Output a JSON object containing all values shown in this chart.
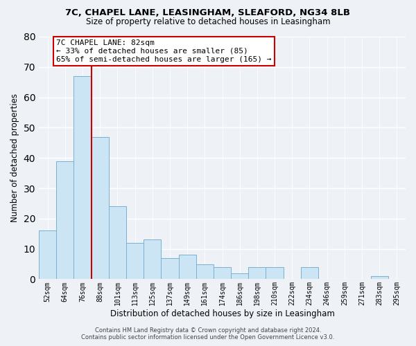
{
  "title1": "7C, CHAPEL LANE, LEASINGHAM, SLEAFORD, NG34 8LB",
  "title2": "Size of property relative to detached houses in Leasingham",
  "xlabel": "Distribution of detached houses by size in Leasingham",
  "ylabel": "Number of detached properties",
  "bar_labels": [
    "52sqm",
    "64sqm",
    "76sqm",
    "88sqm",
    "101sqm",
    "113sqm",
    "125sqm",
    "137sqm",
    "149sqm",
    "161sqm",
    "174sqm",
    "186sqm",
    "198sqm",
    "210sqm",
    "222sqm",
    "234sqm",
    "246sqm",
    "259sqm",
    "271sqm",
    "283sqm",
    "295sqm"
  ],
  "bar_values": [
    16,
    39,
    67,
    47,
    24,
    12,
    13,
    7,
    8,
    5,
    4,
    2,
    4,
    4,
    0,
    4,
    0,
    0,
    0,
    1,
    0
  ],
  "bar_color": "#cce5f5",
  "bar_edge_color": "#7ab0d0",
  "highlight_bar_index": 2,
  "highlight_line_color": "#cc0000",
  "annotation_title": "7C CHAPEL LANE: 82sqm",
  "annotation_line1": "← 33% of detached houses are smaller (85)",
  "annotation_line2": "65% of semi-detached houses are larger (165) →",
  "annotation_box_color": "#ffffff",
  "annotation_box_edge": "#cc0000",
  "ylim": [
    0,
    80
  ],
  "yticks": [
    0,
    10,
    20,
    30,
    40,
    50,
    60,
    70,
    80
  ],
  "footer1": "Contains HM Land Registry data © Crown copyright and database right 2024.",
  "footer2": "Contains public sector information licensed under the Open Government Licence v3.0.",
  "bg_color": "#eef2f7",
  "grid_color": "#ffffff"
}
